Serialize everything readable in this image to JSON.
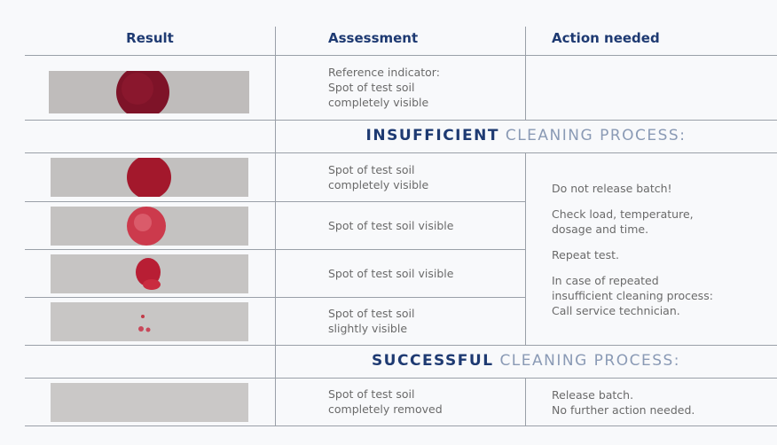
{
  "table": {
    "headers": [
      "Result",
      "Assessment",
      "Action needed"
    ],
    "reference": {
      "assessment": [
        "Reference indicator:",
        "Spot of test soil",
        "completely visible"
      ]
    },
    "sections": [
      {
        "emphasis": "INSUFFICIENT",
        "rest": "CLEANING PROCESS:",
        "rows": [
          {
            "assessment": [
              "Spot of test soil",
              "completely visible"
            ]
          },
          {
            "assessment": [
              "Spot of test soil visible"
            ]
          },
          {
            "assessment": [
              "Spot of test soil visible"
            ]
          },
          {
            "assessment": [
              "Spot of test soil",
              "slightly visible"
            ]
          }
        ],
        "action": [
          [
            "Do not release batch!"
          ],
          [
            "Check load, temperature,",
            "dosage and time."
          ],
          [
            "Repeat test."
          ],
          [
            "In case of repeated",
            "insufficient cleaning process:",
            "Call service technician."
          ]
        ]
      },
      {
        "emphasis": "SUCCESSFUL",
        "rest": "CLEANING PROCESS:",
        "rows": [
          {
            "assessment": [
              "Spot of test soil",
              "completely removed"
            ]
          }
        ],
        "action": [
          [
            "Release batch.",
            "No further action needed."
          ]
        ]
      }
    ]
  }
}
